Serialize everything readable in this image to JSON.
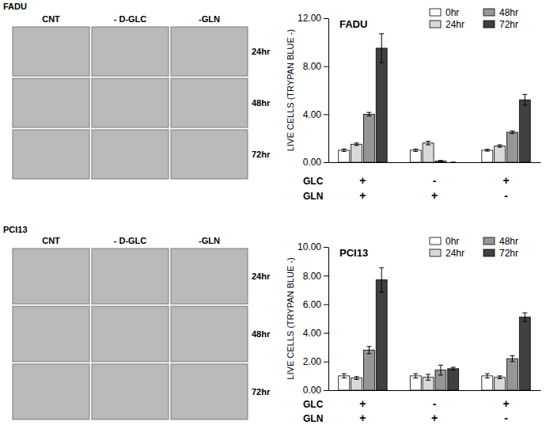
{
  "micrographs": [
    {
      "cell_line": "FADU",
      "columns": [
        "CNT",
        "- D-GLC",
        "-GLN"
      ],
      "rows": [
        "24hr",
        "48hr",
        "72hr"
      ]
    },
    {
      "cell_line": "PCI13",
      "columns": [
        "CNT",
        "- D-GLC",
        "-GLN"
      ],
      "rows": [
        "24hr",
        "48hr",
        "72hr"
      ]
    }
  ],
  "chart_data": [
    {
      "type": "bar",
      "title": "FADU",
      "y_label": "LIVE CELLS (TRYPAN BLUE -)",
      "category_rows": [
        "GLC",
        "GLN"
      ],
      "categories": [
        [
          "+",
          "+"
        ],
        [
          "-",
          "+"
        ],
        [
          "+",
          "-"
        ]
      ],
      "ylim": [
        0,
        12
      ],
      "yticks": [
        {
          "value": 0,
          "label": "0.00"
        },
        {
          "value": 4,
          "label": "4.00"
        },
        {
          "value": 8,
          "label": "8.00"
        },
        {
          "value": 12,
          "label": "12.00"
        }
      ],
      "grid": false,
      "legend": "top-right",
      "series": [
        {
          "name": "0hr",
          "color": "#ffffff",
          "values": [
            1.0,
            1.0,
            1.0
          ],
          "errors": [
            0.1,
            0.1,
            0.08
          ]
        },
        {
          "name": "24hr",
          "color": "#d9d9d9",
          "values": [
            1.5,
            1.6,
            1.35
          ],
          "errors": [
            0.1,
            0.15,
            0.1
          ]
        },
        {
          "name": "48hr",
          "color": "#969696",
          "values": [
            4.0,
            0.1,
            2.5
          ],
          "errors": [
            0.15,
            0.05,
            0.1
          ]
        },
        {
          "name": "72hr",
          "color": "#404040",
          "values": [
            9.5,
            0,
            5.2
          ],
          "errors": [
            1.2,
            0,
            0.45
          ]
        }
      ]
    },
    {
      "type": "bar",
      "title": "PCI13",
      "y_label": "LIVE CELLS (TRYPAN BLUE -)",
      "category_rows": [
        "GLC",
        "GLN"
      ],
      "categories": [
        [
          "+",
          "+"
        ],
        [
          "-",
          "+"
        ],
        [
          "+",
          "-"
        ]
      ],
      "ylim": [
        0,
        10
      ],
      "yticks": [
        {
          "value": 0,
          "label": "0.00"
        },
        {
          "value": 2,
          "label": "2.00"
        },
        {
          "value": 4,
          "label": "4.00"
        },
        {
          "value": 6,
          "label": "6.00"
        },
        {
          "value": 8,
          "label": "8.00"
        },
        {
          "value": 10,
          "label": "10.00"
        }
      ],
      "grid": false,
      "legend": "top-right",
      "series": [
        {
          "name": "0hr",
          "color": "#ffffff",
          "values": [
            1.0,
            1.0,
            1.0
          ],
          "errors": [
            0.15,
            0.15,
            0.15
          ]
        },
        {
          "name": "24hr",
          "color": "#d9d9d9",
          "values": [
            0.85,
            0.9,
            0.9
          ],
          "errors": [
            0.1,
            0.2,
            0.1
          ]
        },
        {
          "name": "48hr",
          "color": "#969696",
          "values": [
            2.8,
            1.4,
            2.2
          ],
          "errors": [
            0.25,
            0.35,
            0.2
          ]
        },
        {
          "name": "72hr",
          "color": "#404040",
          "values": [
            7.7,
            1.5,
            5.1
          ],
          "errors": [
            0.85,
            0.1,
            0.3
          ]
        }
      ]
    }
  ]
}
